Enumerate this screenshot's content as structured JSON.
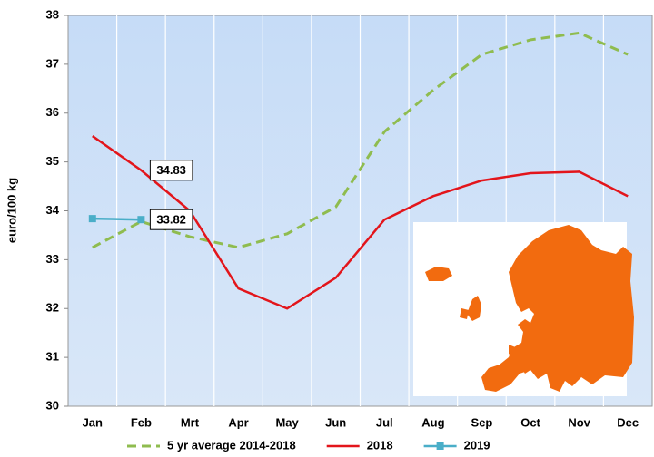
{
  "chart_data": {
    "type": "line",
    "y_label": "euro/100 kg",
    "categories": [
      "Jan",
      "Feb",
      "Mrt",
      "Apr",
      "May",
      "Jun",
      "Jul",
      "Aug",
      "Sep",
      "Oct",
      "Nov",
      "Dec"
    ],
    "series": [
      {
        "name": "5 yr average 2014-2018",
        "color": "#8fbc4f",
        "dash": true,
        "markers": false,
        "values": [
          33.25,
          33.78,
          33.47,
          33.25,
          33.53,
          34.08,
          35.62,
          36.47,
          37.2,
          37.5,
          37.64,
          37.2
        ]
      },
      {
        "name": "2018",
        "color": "#e3151b",
        "dash": false,
        "markers": false,
        "values": [
          35.53,
          34.83,
          34.0,
          32.41,
          32.0,
          32.63,
          33.82,
          34.3,
          34.62,
          34.77,
          34.8,
          34.3
        ],
        "value_labels": [
          null,
          "34.83",
          null,
          null,
          null,
          null,
          null,
          null,
          null,
          null,
          null,
          null
        ]
      },
      {
        "name": "2019",
        "color": "#4aaec8",
        "dash": false,
        "markers": true,
        "values": [
          33.84,
          33.82,
          null,
          null,
          null,
          null,
          null,
          null,
          null,
          null,
          null,
          null
        ],
        "value_labels": [
          null,
          "33.82",
          null,
          null,
          null,
          null,
          null,
          null,
          null,
          null,
          null,
          null
        ]
      }
    ],
    "ylim": [
      30,
      38
    ],
    "yticks": [
      30,
      31,
      32,
      33,
      34,
      35,
      36,
      37,
      38
    ],
    "grid": "x",
    "legend": "bottom"
  }
}
